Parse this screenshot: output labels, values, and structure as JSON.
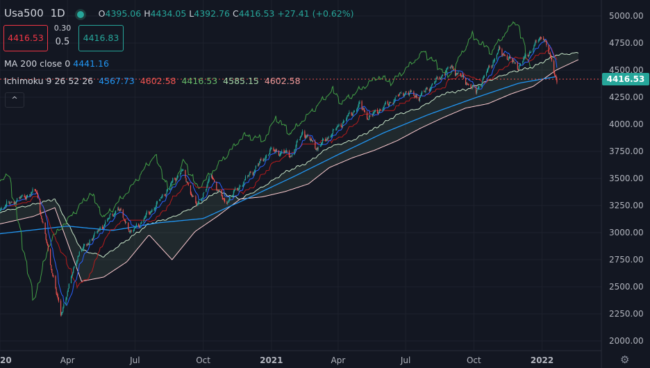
{
  "header": {
    "symbol": "Usa500",
    "interval": "1D",
    "open_label": "O",
    "open": "4395.06",
    "high_label": "H",
    "high": "4434.05",
    "low_label": "L",
    "low": "4392.76",
    "close_label": "C",
    "close": "4416.53",
    "change": "+27.41 (+0.62%)"
  },
  "trade": {
    "sell_price": "4416.53",
    "spread_top": "0.30",
    "spread_bottom": "0.5",
    "buy_price": "4416.83"
  },
  "indicators": {
    "ma": {
      "label": "MA 200 close 0",
      "value": "4441.16"
    },
    "ichimoku": {
      "label": "Ichimoku 9 26 52 26",
      "conversion": "4567.73",
      "base": "4602.58",
      "lagging": "4416.53",
      "lead1": "4585.15",
      "lead2": "4602.58"
    },
    "collapse_glyph": "^"
  },
  "price_tag": "4416.53",
  "settings_icon": "gear-icon",
  "colors": {
    "background": "#131722",
    "grid": "#1e222d",
    "up": "#26a69a",
    "down": "#ef5350",
    "ma": "#2196f3",
    "conversion": "#2962ff",
    "base": "#b71c1c",
    "lagging": "#43a047",
    "lead1": "#c8e6c9",
    "lead2": "#ffcdd2",
    "text": "#d1d4dc",
    "axis_text": "#b2b5be"
  },
  "chart_data": {
    "type": "line",
    "title": "",
    "price_axis": {
      "min": 2000,
      "max": 5000,
      "ticks": [
        5000,
        4750,
        4500,
        4250,
        4000,
        3750,
        3500,
        3250,
        3000,
        2750,
        2500,
        2250,
        2000
      ],
      "tick_labels": [
        "5000.00",
        "4750.00",
        "4500.00",
        "4250.00",
        "4000.00",
        "3750.00",
        "3500.00",
        "3250.00",
        "3000.00",
        "2750.00",
        "2500.00",
        "2250.00",
        "2000.00"
      ]
    },
    "time_axis": {
      "start": "2020-01-01",
      "end": "2022-03-22",
      "ticks": [
        "2020-01-01",
        "2020-04-01",
        "2020-07-01",
        "2020-10-01",
        "2021-01-01",
        "2021-04-01",
        "2021-07-01",
        "2021-10-01",
        "2022-01-01"
      ],
      "tick_labels": [
        "2020",
        "Apr",
        "Jul",
        "Oct",
        "2021",
        "Apr",
        "Jul",
        "Oct",
        "2022"
      ]
    },
    "price_series": {
      "name": "Usa500",
      "dates": [
        "2020-01-01",
        "2020-02-19",
        "2020-03-23",
        "2020-04-15",
        "2020-06-08",
        "2020-06-26",
        "2020-07-31",
        "2020-09-02",
        "2020-09-23",
        "2020-10-12",
        "2020-10-30",
        "2020-12-31",
        "2021-01-29",
        "2021-02-12",
        "2021-03-04",
        "2021-04-30",
        "2021-05-12",
        "2021-06-30",
        "2021-07-19",
        "2021-08-31",
        "2021-10-04",
        "2021-11-04",
        "2021-11-30",
        "2021-12-29",
        "2022-01-04",
        "2022-01-21"
      ],
      "values": [
        3230,
        3390,
        2240,
        2800,
        3230,
        3000,
        3270,
        3580,
        3240,
        3530,
        3270,
        3760,
        3720,
        3930,
        3780,
        4180,
        4060,
        4300,
        4250,
        4530,
        4300,
        4680,
        4530,
        4790,
        4800,
        4400
      ]
    },
    "ma200": {
      "dates": [
        "2020-01-01",
        "2020-04-01",
        "2020-06-01",
        "2020-08-01",
        "2020-10-01",
        "2020-12-01",
        "2021-02-01",
        "2021-04-01",
        "2021-06-01",
        "2021-08-01",
        "2021-10-01",
        "2021-12-01",
        "2022-01-21"
      ],
      "values": [
        2990,
        3060,
        3020,
        3090,
        3130,
        3320,
        3520,
        3720,
        3920,
        4090,
        4240,
        4380,
        4441
      ]
    },
    "ichimoku_cloud": {
      "dates": [
        "2020-01-01",
        "2020-02-15",
        "2020-03-15",
        "2020-04-20",
        "2020-05-20",
        "2020-06-20",
        "2020-07-20",
        "2020-08-20",
        "2020-09-20",
        "2020-10-20",
        "2020-11-20",
        "2020-12-20",
        "2021-01-20",
        "2021-02-20",
        "2021-03-20",
        "2021-04-20",
        "2021-05-20",
        "2021-06-20",
        "2021-07-20",
        "2021-08-20",
        "2021-09-20",
        "2021-10-20",
        "2021-11-20",
        "2021-12-20",
        "2022-01-20",
        "2022-02-20"
      ],
      "lead1": [
        3190,
        3260,
        3310,
        2840,
        2780,
        2930,
        3080,
        3140,
        3240,
        3380,
        3310,
        3420,
        3560,
        3650,
        3790,
        3850,
        3960,
        4090,
        4150,
        4280,
        4320,
        4400,
        4480,
        4530,
        4640,
        4660
      ],
      "lead2": [
        3080,
        3150,
        3230,
        2550,
        2590,
        2730,
        2980,
        2750,
        3010,
        3150,
        3310,
        3330,
        3380,
        3450,
        3600,
        3690,
        3760,
        3850,
        3960,
        4060,
        4150,
        4190,
        4280,
        4350,
        4500,
        4600
      ]
    }
  }
}
